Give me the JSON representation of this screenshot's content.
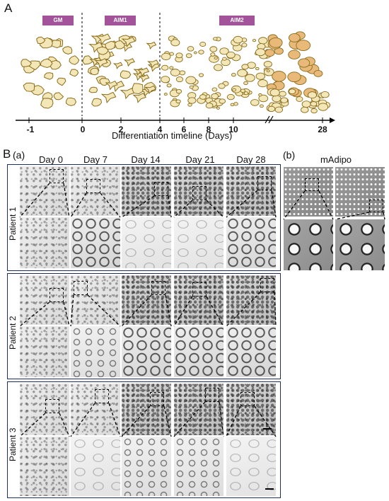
{
  "panel_a": {
    "letter": "A",
    "stages": [
      {
        "label": "GM"
      },
      {
        "label": "AIM1"
      },
      {
        "label": "AIM2"
      }
    ],
    "ticks": [
      "-1",
      "0",
      "2",
      "4",
      "6",
      "8",
      "10",
      "28"
    ],
    "axis_title": "Differentiation timeline (Days)",
    "colors": {
      "badge": "#a3539a",
      "cell_fill": "#f3e7b8",
      "cell_stroke": "#8a6d1c",
      "lipid": "#e9b97a"
    }
  },
  "panel_b": {
    "letter": "B",
    "sub_a": "(a)",
    "sub_b": "(b)",
    "columns": [
      "Day 0",
      "Day 7",
      "Day 14",
      "Day 21",
      "Day 28"
    ],
    "mature_column": "mAdipo",
    "patients": [
      "Patient 1",
      "Patient 2",
      "Patient 3"
    ],
    "box_color": "#1f2f5c"
  }
}
